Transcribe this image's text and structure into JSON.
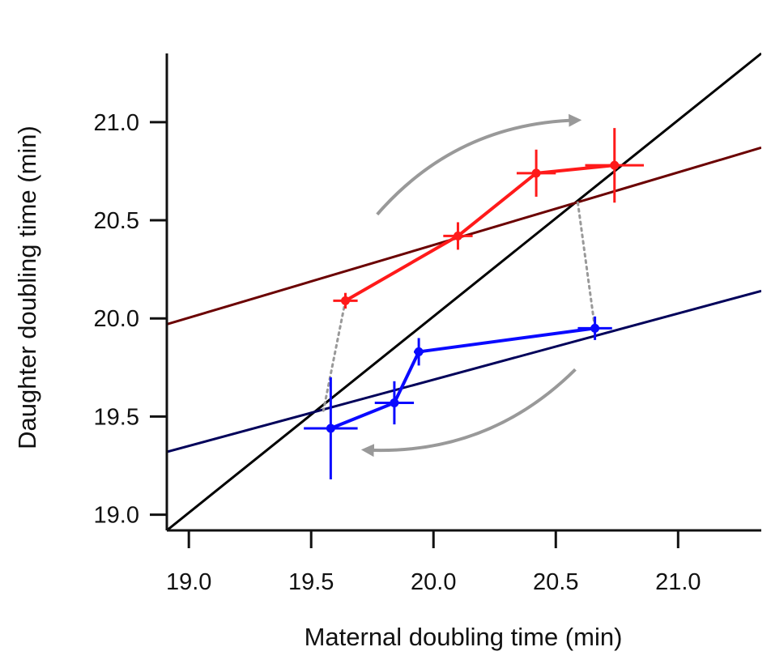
{
  "chart_data": {
    "type": "line",
    "title": "",
    "xlabel": "Maternal doubling time (min)",
    "ylabel": "Daughter doubling time (min)",
    "xlim": [
      18.91,
      21.34
    ],
    "ylim": [
      18.92,
      21.35
    ],
    "x_ticks": [
      "19.0",
      "19.5",
      "20.0",
      "20.5",
      "21.0"
    ],
    "y_ticks": [
      "19.0",
      "19.5",
      "20.0",
      "20.5",
      "21.0"
    ],
    "grid": false,
    "legend": "none",
    "series": [
      {
        "color": "#ff1a1a",
        "points": [
          {
            "x": 19.64,
            "y": 20.09,
            "xerr": 0.05,
            "yerr": 0.04
          },
          {
            "x": 20.1,
            "y": 20.42,
            "xerr": 0.06,
            "yerr": 0.07
          },
          {
            "x": 20.42,
            "y": 20.74,
            "xerr": 0.08,
            "yerr": 0.12
          },
          {
            "x": 20.74,
            "y": 20.78,
            "xerr": 0.12,
            "yerr": 0.19
          }
        ]
      },
      {
        "color": "#0a0aff",
        "points": [
          {
            "x": 19.58,
            "y": 19.44,
            "xerr": 0.11,
            "yerr": 0.26
          },
          {
            "x": 19.84,
            "y": 19.57,
            "xerr": 0.08,
            "yerr": 0.11
          },
          {
            "x": 19.94,
            "y": 19.83,
            "xerr": 0.02,
            "yerr": 0.07
          },
          {
            "x": 20.66,
            "y": 19.95,
            "xerr": 0.07,
            "yerr": 0.06
          }
        ]
      }
    ],
    "reference_lines": [
      {
        "kind": "identity y=x",
        "color": "#000000",
        "from": [
          18.91,
          18.92
        ],
        "to": [
          21.34,
          21.35
        ]
      },
      {
        "kind": "upper fit",
        "color": "#6b0000",
        "from": [
          18.91,
          19.97
        ],
        "to": [
          21.34,
          20.87
        ]
      },
      {
        "kind": "lower fit",
        "color": "#00005a",
        "from": [
          18.91,
          19.32
        ],
        "to": [
          21.34,
          20.14
        ]
      }
    ],
    "connectors": [
      {
        "style": "dotted",
        "color": "#999999",
        "from": [
          19.64,
          20.09
        ],
        "to": [
          19.55,
          19.53
        ]
      },
      {
        "style": "dotted",
        "color": "#999999",
        "from": [
          20.59,
          20.59
        ],
        "to": [
          20.66,
          19.95
        ]
      }
    ],
    "arrows": [
      {
        "color": "#999999",
        "direction": "clockwise top",
        "from": [
          19.77,
          20.53
        ],
        "to": [
          20.59,
          21.01
        ]
      },
      {
        "color": "#999999",
        "direction": "clockwise bottom",
        "from": [
          20.58,
          19.74
        ],
        "to": [
          19.72,
          19.33
        ]
      }
    ]
  }
}
